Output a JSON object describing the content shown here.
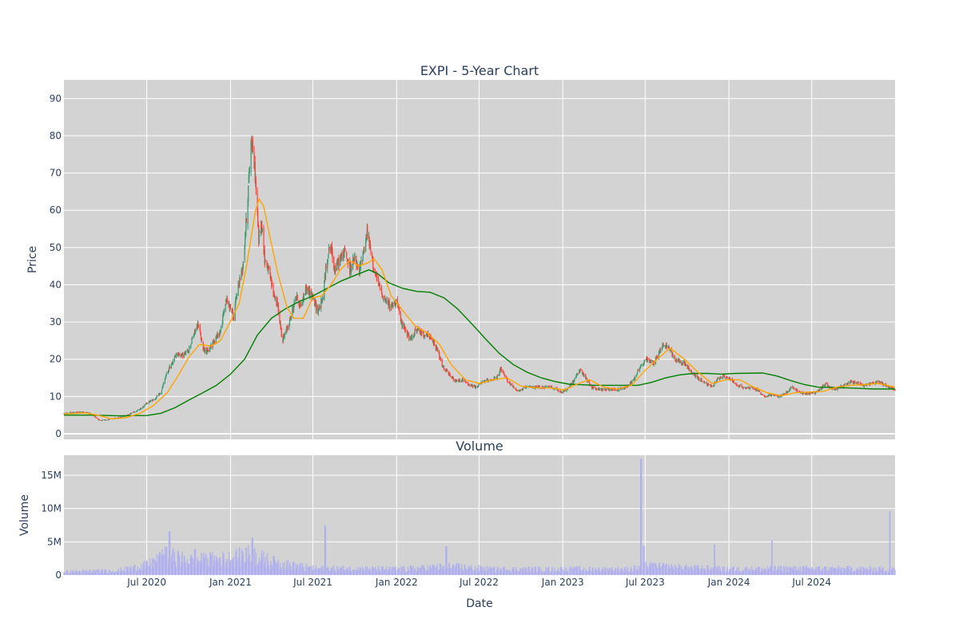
{
  "chart_data": [
    {
      "type": "candlestick",
      "title": "EXPI - 5-Year Chart",
      "ylabel": "Price",
      "ylim": [
        -1.5,
        95
      ],
      "yticks": [
        0,
        10,
        20,
        30,
        40,
        50,
        60,
        70,
        80,
        90
      ],
      "x_range": [
        "2020-01-01",
        "2024-12-31"
      ],
      "grid": true,
      "colors": {
        "increasing": "#3d9970",
        "decreasing": "#ff4136",
        "ma_short": "#ffa500",
        "ma_long": "#008000",
        "background": "#d3d3d3",
        "grid": "#ffffff"
      },
      "price_path": [
        [
          "2020-01-01",
          5.4
        ],
        [
          "2020-01-20",
          5.7
        ],
        [
          "2020-02-10",
          5.8
        ],
        [
          "2020-02-25",
          5.6
        ],
        [
          "2020-03-10",
          4.5
        ],
        [
          "2020-03-20",
          3.5
        ],
        [
          "2020-04-05",
          3.8
        ],
        [
          "2020-04-25",
          4.2
        ],
        [
          "2020-05-15",
          4.8
        ],
        [
          "2020-06-01",
          5.8
        ],
        [
          "2020-06-15",
          6.5
        ],
        [
          "2020-07-01",
          8.2
        ],
        [
          "2020-07-20",
          9.5
        ],
        [
          "2020-08-01",
          11
        ],
        [
          "2020-08-12",
          15.5
        ],
        [
          "2020-08-25",
          19
        ],
        [
          "2020-09-05",
          21.5
        ],
        [
          "2020-09-20",
          21
        ],
        [
          "2020-10-01",
          22.5
        ],
        [
          "2020-10-15",
          27.5
        ],
        [
          "2020-10-22",
          29.5
        ],
        [
          "2020-11-01",
          23
        ],
        [
          "2020-11-12",
          22
        ],
        [
          "2020-11-25",
          25
        ],
        [
          "2020-12-10",
          27.5
        ],
        [
          "2020-12-22",
          36
        ],
        [
          "2021-01-01",
          34
        ],
        [
          "2021-01-08",
          31
        ],
        [
          "2021-01-15",
          38
        ],
        [
          "2021-01-28",
          45
        ],
        [
          "2021-02-05",
          58
        ],
        [
          "2021-02-11",
          70
        ],
        [
          "2021-02-16",
          80
        ],
        [
          "2021-02-20",
          75
        ],
        [
          "2021-02-25",
          68
        ],
        [
          "2021-03-04",
          52
        ],
        [
          "2021-03-10",
          57
        ],
        [
          "2021-03-17",
          47
        ],
        [
          "2021-03-25",
          44
        ],
        [
          "2021-04-05",
          38
        ],
        [
          "2021-04-15",
          34
        ],
        [
          "2021-04-25",
          25
        ],
        [
          "2021-05-05",
          28
        ],
        [
          "2021-05-15",
          32
        ],
        [
          "2021-05-25",
          37
        ],
        [
          "2021-06-05",
          34
        ],
        [
          "2021-06-15",
          39
        ],
        [
          "2021-06-25",
          38
        ],
        [
          "2021-07-05",
          35
        ],
        [
          "2021-07-12",
          33
        ],
        [
          "2021-07-22",
          36
        ],
        [
          "2021-08-01",
          47
        ],
        [
          "2021-08-08",
          51
        ],
        [
          "2021-08-18",
          44
        ],
        [
          "2021-08-30",
          47
        ],
        [
          "2021-09-10",
          49
        ],
        [
          "2021-09-20",
          44
        ],
        [
          "2021-10-01",
          47
        ],
        [
          "2021-10-10",
          43
        ],
        [
          "2021-10-20",
          49
        ],
        [
          "2021-10-28",
          54
        ],
        [
          "2021-11-05",
          49
        ],
        [
          "2021-11-12",
          44
        ],
        [
          "2021-11-22",
          40
        ],
        [
          "2021-12-05",
          36
        ],
        [
          "2021-12-20",
          34
        ],
        [
          "2022-01-01",
          36
        ],
        [
          "2022-01-10",
          30
        ],
        [
          "2022-01-20",
          28
        ],
        [
          "2022-02-01",
          25
        ],
        [
          "2022-02-12",
          28
        ],
        [
          "2022-02-25",
          27
        ],
        [
          "2022-03-15",
          26
        ],
        [
          "2022-03-30",
          23
        ],
        [
          "2022-04-12",
          18
        ],
        [
          "2022-04-25",
          16
        ],
        [
          "2022-05-10",
          14
        ],
        [
          "2022-05-25",
          14.5
        ],
        [
          "2022-06-10",
          13
        ],
        [
          "2022-06-25",
          12.5
        ],
        [
          "2022-07-10",
          14
        ],
        [
          "2022-07-25",
          14.5
        ],
        [
          "2022-08-10",
          15
        ],
        [
          "2022-08-18",
          17.5
        ],
        [
          "2022-08-28",
          15
        ],
        [
          "2022-09-10",
          13
        ],
        [
          "2022-09-25",
          11.5
        ],
        [
          "2022-10-15",
          12.5
        ],
        [
          "2022-11-01",
          12.5
        ],
        [
          "2022-11-20",
          12.5
        ],
        [
          "2022-12-10",
          12.5
        ],
        [
          "2022-12-28",
          11
        ],
        [
          "2023-01-15",
          12.5
        ],
        [
          "2023-01-28",
          15
        ],
        [
          "2023-02-08",
          17
        ],
        [
          "2023-02-20",
          15
        ],
        [
          "2023-03-05",
          12.5
        ],
        [
          "2023-03-25",
          11.8
        ],
        [
          "2023-04-15",
          12
        ],
        [
          "2023-05-01",
          11.8
        ],
        [
          "2023-05-20",
          12.5
        ],
        [
          "2023-06-05",
          14.5
        ],
        [
          "2023-06-20",
          18
        ],
        [
          "2023-07-05",
          20
        ],
        [
          "2023-07-20",
          19
        ],
        [
          "2023-08-01",
          22
        ],
        [
          "2023-08-10",
          24
        ],
        [
          "2023-08-22",
          23
        ],
        [
          "2023-09-05",
          20
        ],
        [
          "2023-09-25",
          19
        ],
        [
          "2023-10-10",
          16.5
        ],
        [
          "2023-10-25",
          15
        ],
        [
          "2023-11-10",
          13.5
        ],
        [
          "2023-11-25",
          12.5
        ],
        [
          "2023-12-05",
          14.5
        ],
        [
          "2023-12-20",
          15.5
        ],
        [
          "2024-01-05",
          14.5
        ],
        [
          "2024-01-20",
          13
        ],
        [
          "2024-02-05",
          12.3
        ],
        [
          "2024-02-20",
          12.5
        ],
        [
          "2024-03-05",
          11.5
        ],
        [
          "2024-03-20",
          10
        ],
        [
          "2024-04-05",
          10.5
        ],
        [
          "2024-04-20",
          9.8
        ],
        [
          "2024-05-05",
          11
        ],
        [
          "2024-05-20",
          12.5
        ],
        [
          "2024-06-05",
          11
        ],
        [
          "2024-06-25",
          10.8
        ],
        [
          "2024-07-10",
          11
        ],
        [
          "2024-07-20",
          12
        ],
        [
          "2024-08-01",
          13.5
        ],
        [
          "2024-08-10",
          12.5
        ],
        [
          "2024-08-25",
          12
        ],
        [
          "2024-09-10",
          13
        ],
        [
          "2024-09-25",
          14
        ],
        [
          "2024-10-10",
          13.5
        ],
        [
          "2024-10-25",
          13
        ],
        [
          "2024-11-10",
          13.5
        ],
        [
          "2024-11-25",
          14
        ],
        [
          "2024-12-10",
          13
        ],
        [
          "2024-12-31",
          11.8
        ]
      ],
      "ma_short": [
        [
          "2020-01-01",
          5.3
        ],
        [
          "2020-02-15",
          5.6
        ],
        [
          "2020-03-15",
          5.0
        ],
        [
          "2020-04-15",
          4.0
        ],
        [
          "2020-05-15",
          4.3
        ],
        [
          "2020-06-15",
          5.4
        ],
        [
          "2020-07-15",
          7.5
        ],
        [
          "2020-08-15",
          11
        ],
        [
          "2020-09-10",
          16
        ],
        [
          "2020-10-01",
          20.5
        ],
        [
          "2020-10-25",
          24
        ],
        [
          "2020-11-20",
          23.5
        ],
        [
          "2020-12-10",
          25
        ],
        [
          "2020-12-31",
          30
        ],
        [
          "2021-01-20",
          35
        ],
        [
          "2021-02-05",
          45
        ],
        [
          "2021-02-25",
          60
        ],
        [
          "2021-03-05",
          63
        ],
        [
          "2021-03-15",
          61
        ],
        [
          "2021-03-30",
          52
        ],
        [
          "2021-04-15",
          43
        ],
        [
          "2021-05-05",
          34
        ],
        [
          "2021-05-20",
          31
        ],
        [
          "2021-06-10",
          31
        ],
        [
          "2021-06-30",
          36.5
        ],
        [
          "2021-07-20",
          37
        ],
        [
          "2021-08-10",
          40
        ],
        [
          "2021-08-30",
          44
        ],
        [
          "2021-09-20",
          46.5
        ],
        [
          "2021-10-10",
          45
        ],
        [
          "2021-11-01",
          46
        ],
        [
          "2021-11-12",
          47
        ],
        [
          "2021-11-30",
          44
        ],
        [
          "2021-12-20",
          37
        ],
        [
          "2022-01-15",
          33
        ],
        [
          "2022-02-10",
          29
        ],
        [
          "2022-03-10",
          27
        ],
        [
          "2022-04-05",
          24
        ],
        [
          "2022-05-01",
          18.5
        ],
        [
          "2022-06-01",
          14.5
        ],
        [
          "2022-07-01",
          13.5
        ],
        [
          "2022-08-01",
          14.5
        ],
        [
          "2022-09-01",
          15
        ],
        [
          "2022-10-01",
          12.8
        ],
        [
          "2022-11-01",
          12.3
        ],
        [
          "2022-12-01",
          12.3
        ],
        [
          "2023-01-05",
          11.8
        ],
        [
          "2023-02-05",
          13.5
        ],
        [
          "2023-03-01",
          14.5
        ],
        [
          "2023-04-01",
          12.5
        ],
        [
          "2023-05-01",
          12
        ],
        [
          "2023-06-01",
          13
        ],
        [
          "2023-07-01",
          17
        ],
        [
          "2023-08-01",
          20.5
        ],
        [
          "2023-08-25",
          23
        ],
        [
          "2023-09-25",
          20
        ],
        [
          "2023-10-25",
          16.5
        ],
        [
          "2023-11-25",
          13.5
        ],
        [
          "2023-12-25",
          14.5
        ],
        [
          "2024-01-25",
          14.5
        ],
        [
          "2024-02-25",
          12.5
        ],
        [
          "2024-03-25",
          11
        ],
        [
          "2024-04-25",
          10.2
        ],
        [
          "2024-05-25",
          11
        ],
        [
          "2024-06-25",
          11.2
        ],
        [
          "2024-07-25",
          11.3
        ],
        [
          "2024-08-25",
          12.5
        ],
        [
          "2024-09-25",
          13
        ],
        [
          "2024-10-25",
          13.2
        ],
        [
          "2024-11-25",
          13.5
        ],
        [
          "2024-12-31",
          12.5
        ]
      ],
      "ma_long": [
        [
          "2020-01-01",
          5.0
        ],
        [
          "2020-03-01",
          5.0
        ],
        [
          "2020-05-01",
          4.8
        ],
        [
          "2020-07-01",
          4.9
        ],
        [
          "2020-08-01",
          5.5
        ],
        [
          "2020-09-01",
          7
        ],
        [
          "2020-10-01",
          9
        ],
        [
          "2020-11-01",
          11
        ],
        [
          "2020-12-01",
          13
        ],
        [
          "2021-01-01",
          16
        ],
        [
          "2021-02-01",
          20
        ],
        [
          "2021-03-01",
          26.5
        ],
        [
          "2021-04-01",
          31
        ],
        [
          "2021-05-01",
          33.5
        ],
        [
          "2021-06-01",
          35.5
        ],
        [
          "2021-07-01",
          37
        ],
        [
          "2021-08-01",
          39
        ],
        [
          "2021-09-01",
          41
        ],
        [
          "2021-10-01",
          42.5
        ],
        [
          "2021-11-01",
          44
        ],
        [
          "2021-11-20",
          43
        ],
        [
          "2021-12-15",
          40.5
        ],
        [
          "2022-01-15",
          39
        ],
        [
          "2022-02-15",
          38.2
        ],
        [
          "2022-03-15",
          38
        ],
        [
          "2022-04-15",
          36.5
        ],
        [
          "2022-05-15",
          33.5
        ],
        [
          "2022-06-15",
          29.5
        ],
        [
          "2022-07-15",
          25.5
        ],
        [
          "2022-08-15",
          21.5
        ],
        [
          "2022-09-15",
          18.5
        ],
        [
          "2022-10-15",
          16.5
        ],
        [
          "2022-11-15",
          15
        ],
        [
          "2022-12-15",
          14
        ],
        [
          "2023-01-15",
          13.3
        ],
        [
          "2023-03-15",
          13
        ],
        [
          "2023-05-15",
          13
        ],
        [
          "2023-06-15",
          13
        ],
        [
          "2023-07-15",
          13.8
        ],
        [
          "2023-08-15",
          15
        ],
        [
          "2023-09-15",
          15.8
        ],
        [
          "2023-10-15",
          16.2
        ],
        [
          "2023-11-15",
          16.2
        ],
        [
          "2023-12-15",
          16
        ],
        [
          "2024-01-15",
          16.2
        ],
        [
          "2024-03-15",
          16.3
        ],
        [
          "2024-04-15",
          15.5
        ],
        [
          "2024-05-15",
          14.3
        ],
        [
          "2024-06-15",
          13.2
        ],
        [
          "2024-07-15",
          12.5
        ],
        [
          "2024-09-15",
          12.3
        ],
        [
          "2024-11-15",
          12
        ],
        [
          "2024-12-31",
          12
        ]
      ]
    },
    {
      "type": "bar",
      "title": "Volume",
      "xlabel": "Date",
      "ylabel": "Volume",
      "ylim": [
        0,
        18000000
      ],
      "yticks": [
        0,
        5000000,
        10000000,
        15000000
      ],
      "ytick_labels": [
        "0",
        "5M",
        "10M",
        "15M"
      ],
      "xticks": [
        "2020-07-01",
        "2021-01-01",
        "2021-07-01",
        "2022-01-01",
        "2022-07-01",
        "2023-01-01",
        "2023-07-01",
        "2024-01-01",
        "2024-07-01"
      ],
      "xtick_labels": [
        "Jul 2020",
        "Jan 2021",
        "Jul 2021",
        "Jan 2022",
        "Jul 2022",
        "Jan 2023",
        "Jul 2023",
        "Jan 2024",
        "Jul 2024"
      ],
      "colors": {
        "bar": "#b0b0ee",
        "background": "#d3d3d3",
        "grid": "#ffffff"
      },
      "volume_envelope": [
        [
          "2020-01-01",
          500000
        ],
        [
          "2020-05-01",
          700000
        ],
        [
          "2020-07-01",
          1500000
        ],
        [
          "2020-08-15",
          3000000
        ],
        [
          "2020-10-01",
          2200000
        ],
        [
          "2021-01-01",
          2500000
        ],
        [
          "2021-02-15",
          3200000
        ],
        [
          "2021-04-01",
          2000000
        ],
        [
          "2021-07-01",
          1000000
        ],
        [
          "2021-10-01",
          1000000
        ],
        [
          "2022-01-01",
          900000
        ],
        [
          "2022-05-01",
          1300000
        ],
        [
          "2022-08-01",
          900000
        ],
        [
          "2023-01-01",
          900000
        ],
        [
          "2023-06-01",
          900000
        ],
        [
          "2023-07-01",
          1400000
        ],
        [
          "2023-10-01",
          1100000
        ],
        [
          "2024-01-01",
          900000
        ],
        [
          "2024-06-01",
          1000000
        ],
        [
          "2024-12-31",
          900000
        ]
      ],
      "volume_spikes": [
        [
          "2020-08-20",
          6600000
        ],
        [
          "2020-08-10",
          4300000
        ],
        [
          "2020-10-15",
          3900000
        ],
        [
          "2021-02-18",
          5600000
        ],
        [
          "2021-02-05",
          4100000
        ],
        [
          "2021-07-28",
          7400000
        ],
        [
          "2022-04-20",
          4300000
        ],
        [
          "2023-06-22",
          17500000
        ],
        [
          "2023-06-28",
          4400000
        ],
        [
          "2023-12-01",
          4600000
        ],
        [
          "2024-04-05",
          5200000
        ],
        [
          "2024-12-20",
          9600000
        ]
      ]
    }
  ]
}
